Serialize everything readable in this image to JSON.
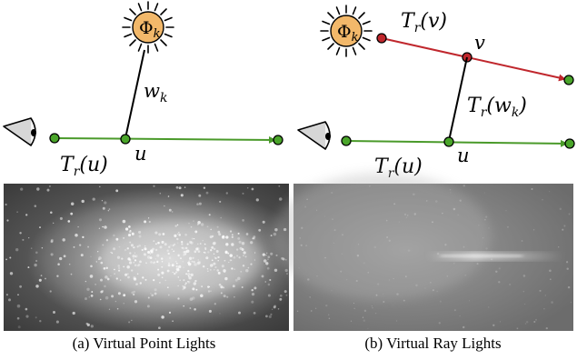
{
  "panel_a": {
    "diagram": {
      "light_symbol": "Φ",
      "light_sub": "k",
      "segment_label": "w",
      "segment_sub": "k",
      "point_label": "u",
      "transmittance_label": "T",
      "transmittance_sub": "r",
      "transmittance_arg": "(u)"
    },
    "caption": "(a) Virtual Point Lights"
  },
  "panel_b": {
    "diagram": {
      "light_symbol": "Φ",
      "light_sub": "k",
      "ray_point_label": "v",
      "ray_transmittance_T": "T",
      "ray_transmittance_sub": "r",
      "ray_transmittance_arg": "(v)",
      "segment_transmittance_T": "T",
      "segment_transmittance_sub": "r",
      "segment_transmittance_arg_open": "(w",
      "segment_transmittance_arg_sub": "k",
      "segment_transmittance_arg_close": ")",
      "point_label": "u",
      "transmittance_label": "T",
      "transmittance_sub": "r",
      "transmittance_arg": "(u)"
    },
    "caption": "(b) Virtual Ray Lights"
  },
  "colors": {
    "light_fill": "#f2b86a",
    "camera_ray": "#4a9a2a",
    "green_point": "#4aa52a",
    "light_ray": "#c0272d",
    "red_point": "#c0272d"
  },
  "icons": [
    "sun-icon",
    "eye-icon"
  ]
}
